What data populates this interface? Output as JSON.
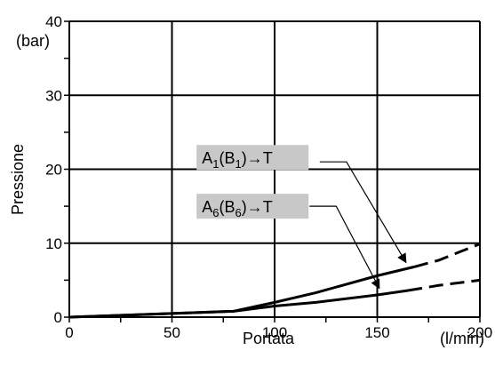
{
  "chart_data": {
    "type": "line",
    "title": "",
    "xlabel": "Portata",
    "xunit": "(l/min)",
    "ylabel": "Pressione",
    "yunit": "(bar)",
    "xlim": [
      0,
      200
    ],
    "ylim": [
      0,
      40
    ],
    "x_ticks": [
      0,
      50,
      100,
      150,
      200
    ],
    "y_ticks": [
      0,
      10,
      20,
      30,
      40
    ],
    "x_tick_labels": [
      "0",
      "50",
      "100",
      "150",
      "200"
    ],
    "y_tick_labels": [
      "0",
      "10",
      "20",
      "30",
      "40"
    ],
    "grid": true,
    "series": [
      {
        "label_main": "A",
        "label_sub1": "1",
        "label_mid": "(B",
        "label_sub2": "1",
        "label_tail": ")→T",
        "solid": [
          [
            0,
            0
          ],
          [
            20,
            0.2
          ],
          [
            50,
            0.5
          ],
          [
            80,
            0.8
          ],
          [
            100,
            2.0
          ],
          [
            120,
            3.3
          ],
          [
            150,
            5.6
          ],
          [
            168,
            6.8
          ]
        ],
        "dashed": [
          [
            168,
            6.8
          ],
          [
            180,
            7.7
          ],
          [
            200,
            9.9
          ]
        ],
        "label_box": [
          62,
          21.6
        ],
        "arrow_path": [
          [
            122,
            21.0
          ],
          [
            135,
            21.0
          ],
          [
            164,
            7.4
          ]
        ]
      },
      {
        "label_main": "A",
        "label_sub1": "6",
        "label_mid": "(B",
        "label_sub2": "6",
        "label_tail": ")→T",
        "solid": [
          [
            0,
            0
          ],
          [
            20,
            0.2
          ],
          [
            50,
            0.5
          ],
          [
            80,
            0.8
          ],
          [
            100,
            1.5
          ],
          [
            120,
            2.0
          ],
          [
            150,
            3.0
          ],
          [
            165,
            3.6
          ]
        ],
        "dashed": [
          [
            165,
            3.6
          ],
          [
            180,
            4.3
          ],
          [
            200,
            5.0
          ]
        ],
        "label_box": [
          62,
          15.0
        ],
        "arrow_path": [
          [
            117,
            15.0
          ],
          [
            130,
            15.0
          ],
          [
            151,
            3.9
          ]
        ]
      }
    ]
  }
}
